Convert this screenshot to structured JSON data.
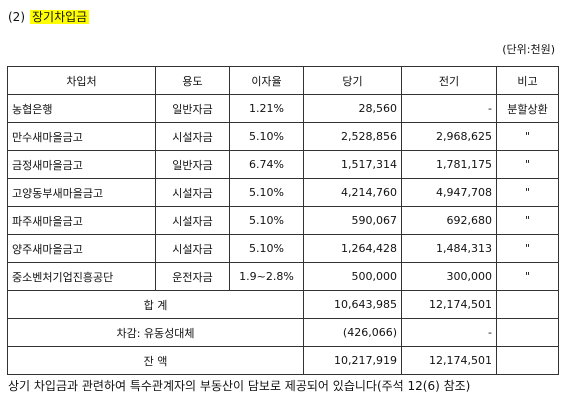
{
  "heading": {
    "number": "(2)",
    "title": "장기차입금"
  },
  "unit": "(단위:천원)",
  "table": {
    "headers": [
      "차입처",
      "용도",
      "이자율",
      "당기",
      "전기",
      "비고"
    ],
    "rows": [
      {
        "lender": "농협은행",
        "purpose": "일반자금",
        "rate": "1.21%",
        "current": "28,560",
        "prior": "-",
        "note": "분할상환"
      },
      {
        "lender": "만수새마을금고",
        "purpose": "시설자금",
        "rate": "5.10%",
        "current": "2,528,856",
        "prior": "2,968,625",
        "note": "\""
      },
      {
        "lender": "금정새마을금고",
        "purpose": "일반자금",
        "rate": "6.74%",
        "current": "1,517,314",
        "prior": "1,781,175",
        "note": "\""
      },
      {
        "lender": "고양동부새마을금고",
        "purpose": "시설자금",
        "rate": "5.10%",
        "current": "4,214,760",
        "prior": "4,947,708",
        "note": "\""
      },
      {
        "lender": "파주새마을금고",
        "purpose": "시설자금",
        "rate": "5.10%",
        "current": "590,067",
        "prior": "692,680",
        "note": "\""
      },
      {
        "lender": "양주새마을금고",
        "purpose": "시설자금",
        "rate": "5.10%",
        "current": "1,264,428",
        "prior": "1,484,313",
        "note": "\""
      },
      {
        "lender": "중소벤처기업진흥공단",
        "purpose": "운전자금",
        "rate": "1.9~2.8%",
        "current": "500,000",
        "prior": "300,000",
        "note": "\""
      }
    ],
    "total": {
      "label": "합 계",
      "current": "10,643,985",
      "prior": "12,174,501"
    },
    "reclass": {
      "label": "차감: 유동성대체",
      "current": "(426,066)",
      "prior": "-"
    },
    "balance": {
      "label": "잔 액",
      "current": "10,217,919",
      "prior": "12,174,501"
    }
  },
  "footnote": "상기 차입금과 관련하여 특수관계자의 부동산이 담보로 제공되어 있습니다(주석 12(6) 참조)"
}
